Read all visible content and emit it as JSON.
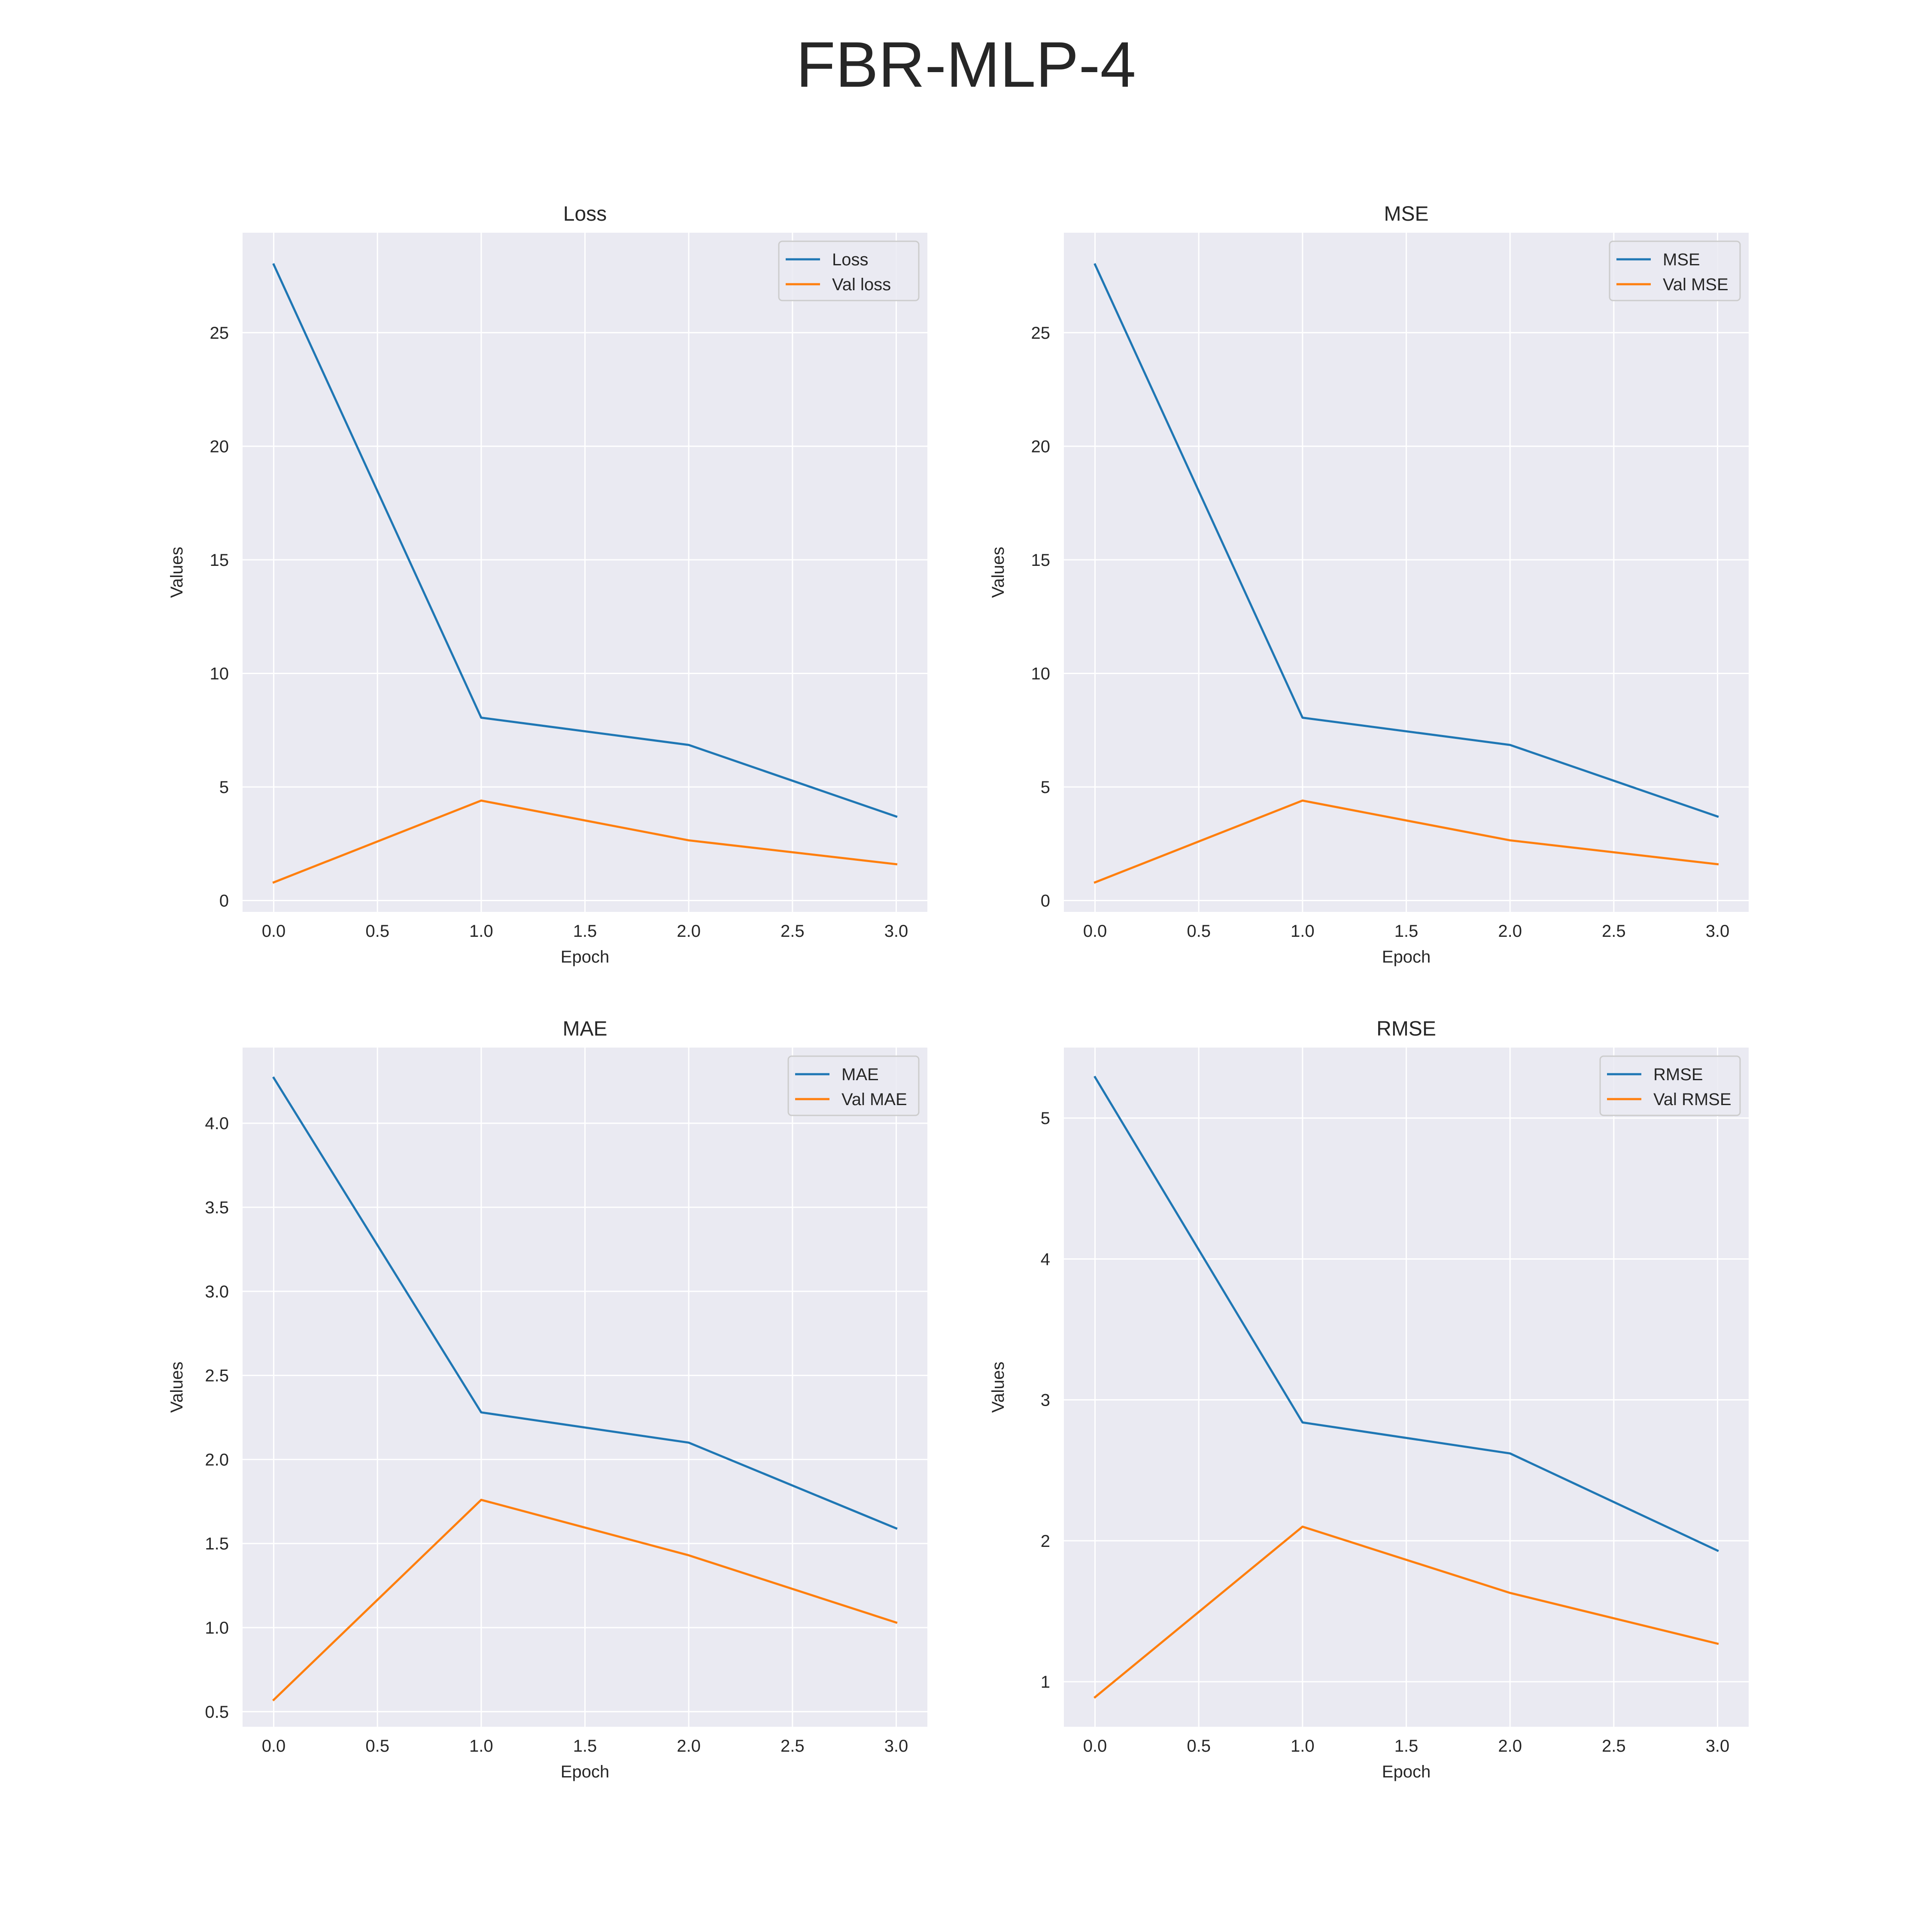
{
  "figure": {
    "title": "FBR-MLP-4"
  },
  "colors": {
    "train": "#1f77b4",
    "val": "#ff7f0e",
    "panel_bg": "#eaeaf2",
    "grid": "#ffffff"
  },
  "chart_data": [
    {
      "type": "line",
      "title": "Loss",
      "xlabel": "Epoch",
      "ylabel": "Values",
      "x": [
        0,
        1,
        2,
        3
      ],
      "xlim": [
        -0.15,
        3.15
      ],
      "ylim": [
        -0.5,
        29.4
      ],
      "xticks": [
        0.0,
        0.5,
        1.0,
        1.5,
        2.0,
        2.5,
        3.0
      ],
      "xtick_labels": [
        "0.0",
        "0.5",
        "1.0",
        "1.5",
        "2.0",
        "2.5",
        "3.0"
      ],
      "yticks": [
        0,
        5,
        10,
        15,
        20,
        25
      ],
      "ytick_labels": [
        "0",
        "5",
        "10",
        "15",
        "20",
        "25"
      ],
      "legend": "top-right",
      "grid": true,
      "series": [
        {
          "name": "Loss",
          "color": "#1f77b4",
          "values": [
            28.0,
            8.05,
            6.85,
            3.7
          ]
        },
        {
          "name": "Val loss",
          "color": "#ff7f0e",
          "values": [
            0.8,
            4.4,
            2.65,
            1.6
          ]
        }
      ]
    },
    {
      "type": "line",
      "title": "MSE",
      "xlabel": "Epoch",
      "ylabel": "Values",
      "x": [
        0,
        1,
        2,
        3
      ],
      "xlim": [
        -0.15,
        3.15
      ],
      "ylim": [
        -0.5,
        29.4
      ],
      "xticks": [
        0.0,
        0.5,
        1.0,
        1.5,
        2.0,
        2.5,
        3.0
      ],
      "xtick_labels": [
        "0.0",
        "0.5",
        "1.0",
        "1.5",
        "2.0",
        "2.5",
        "3.0"
      ],
      "yticks": [
        0,
        5,
        10,
        15,
        20,
        25
      ],
      "ytick_labels": [
        "0",
        "5",
        "10",
        "15",
        "20",
        "25"
      ],
      "legend": "top-right",
      "grid": true,
      "series": [
        {
          "name": "MSE",
          "color": "#1f77b4",
          "values": [
            28.0,
            8.05,
            6.85,
            3.7
          ]
        },
        {
          "name": "Val MSE",
          "color": "#ff7f0e",
          "values": [
            0.8,
            4.4,
            2.65,
            1.6
          ]
        }
      ]
    },
    {
      "type": "line",
      "title": "MAE",
      "xlabel": "Epoch",
      "ylabel": "Values",
      "x": [
        0,
        1,
        2,
        3
      ],
      "xlim": [
        -0.15,
        3.15
      ],
      "ylim": [
        0.41,
        4.45
      ],
      "xticks": [
        0.0,
        0.5,
        1.0,
        1.5,
        2.0,
        2.5,
        3.0
      ],
      "xtick_labels": [
        "0.0",
        "0.5",
        "1.0",
        "1.5",
        "2.0",
        "2.5",
        "3.0"
      ],
      "yticks": [
        0.5,
        1.0,
        1.5,
        2.0,
        2.5,
        3.0,
        3.5,
        4.0
      ],
      "ytick_labels": [
        "0.5",
        "1.0",
        "1.5",
        "2.0",
        "2.5",
        "3.0",
        "3.5",
        "4.0"
      ],
      "legend": "top-right",
      "grid": true,
      "series": [
        {
          "name": "MAE",
          "color": "#1f77b4",
          "values": [
            4.27,
            2.28,
            2.1,
            1.59
          ]
        },
        {
          "name": "Val MAE",
          "color": "#ff7f0e",
          "values": [
            0.57,
            1.76,
            1.43,
            1.03
          ]
        }
      ]
    },
    {
      "type": "line",
      "title": "RMSE",
      "xlabel": "Epoch",
      "ylabel": "Values",
      "x": [
        0,
        1,
        2,
        3
      ],
      "xlim": [
        -0.15,
        3.15
      ],
      "ylim": [
        0.68,
        5.5
      ],
      "xticks": [
        0.0,
        0.5,
        1.0,
        1.5,
        2.0,
        2.5,
        3.0
      ],
      "xtick_labels": [
        "0.0",
        "0.5",
        "1.0",
        "1.5",
        "2.0",
        "2.5",
        "3.0"
      ],
      "yticks": [
        1,
        2,
        3,
        4,
        5
      ],
      "ytick_labels": [
        "1",
        "2",
        "3",
        "4",
        "5"
      ],
      "legend": "top-right",
      "grid": true,
      "series": [
        {
          "name": "RMSE",
          "color": "#1f77b4",
          "values": [
            5.29,
            2.84,
            2.62,
            1.93
          ]
        },
        {
          "name": "Val RMSE",
          "color": "#ff7f0e",
          "values": [
            0.89,
            2.1,
            1.63,
            1.27
          ]
        }
      ]
    }
  ]
}
